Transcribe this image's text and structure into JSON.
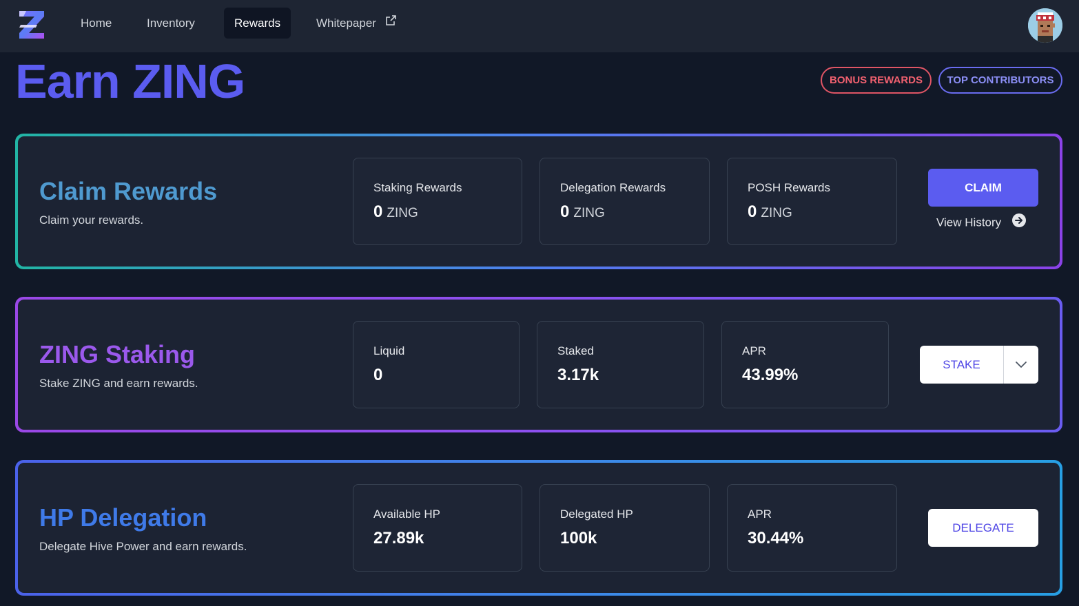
{
  "nav": {
    "links": [
      {
        "label": "Home"
      },
      {
        "label": "Inventory"
      },
      {
        "label": "Rewards"
      },
      {
        "label": "Whitepaper"
      }
    ],
    "active": "Rewards",
    "logo_icon": "zing-logo-icon",
    "avatar_icon": "pixel-avatar-icon"
  },
  "header": {
    "title": "Earn ZING",
    "bonus_label": "BONUS REWARDS",
    "top_label": "TOP CONTRIBUTORS"
  },
  "claim": {
    "title": "Claim Rewards",
    "subtitle": "Claim your rewards.",
    "stats": [
      {
        "label": "Staking Rewards",
        "value": "0",
        "unit": "ZING"
      },
      {
        "label": "Delegation Rewards",
        "value": "0",
        "unit": "ZING"
      },
      {
        "label": "POSH Rewards",
        "value": "0",
        "unit": "ZING"
      }
    ],
    "button": "CLAIM",
    "history": "View History"
  },
  "staking": {
    "title": "ZING Staking",
    "subtitle": "Stake ZING and earn rewards.",
    "stats": [
      {
        "label": "Liquid",
        "value": "0"
      },
      {
        "label": "Staked",
        "value": "3.17k"
      },
      {
        "label": "APR",
        "value": "43.99%"
      }
    ],
    "button": "STAKE"
  },
  "delegation": {
    "title": "HP Delegation",
    "subtitle": "Delegate Hive Power and earn rewards.",
    "stats": [
      {
        "label": "Available HP",
        "value": "27.89k"
      },
      {
        "label": "Delegated HP",
        "value": "100k"
      },
      {
        "label": "APR",
        "value": "30.44%"
      }
    ],
    "button": "DELEGATE"
  },
  "colors": {
    "accent": "#5b5cf0",
    "background": "#111827",
    "card": "#1c2333",
    "bonus": "#e05565"
  }
}
